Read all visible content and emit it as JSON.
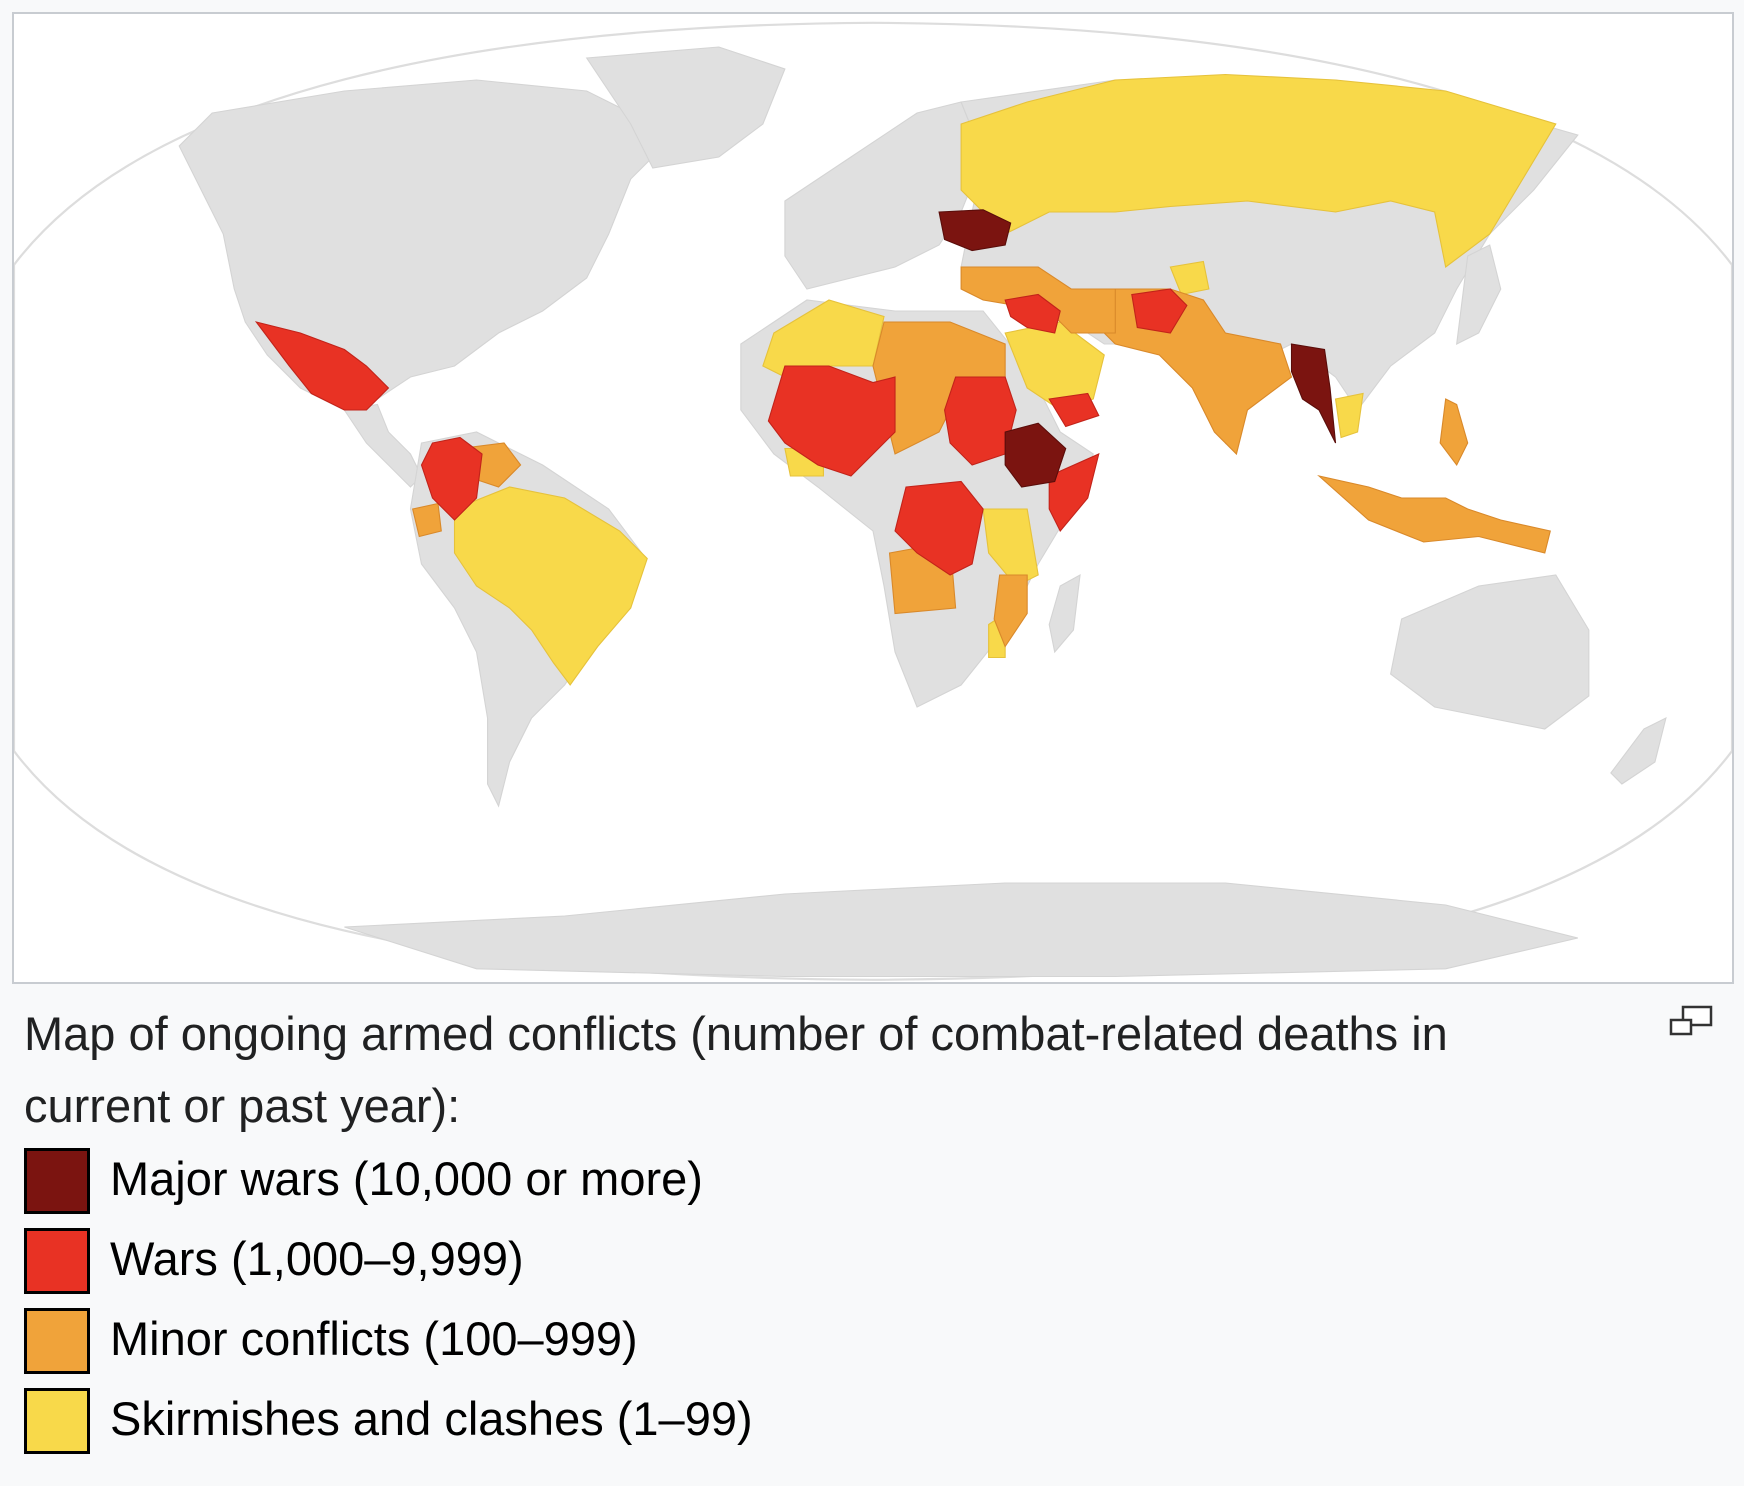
{
  "caption": {
    "text": "Map of ongoing armed conflicts (number of combat-related deaths in current or past year):"
  },
  "enlarge_icon": "enlarge-icon",
  "map": {
    "ocean_color": "#ffffff",
    "land_color": "#e0e0e0",
    "border_color": "#d4d4d4"
  },
  "legend": {
    "items": [
      {
        "label": "Major wars (10,000 or more)",
        "color": "#7b1410"
      },
      {
        "label": "Wars (1,000–9,999)",
        "color": "#e83224"
      },
      {
        "label": "Minor conflicts (100–999)",
        "color": "#f0a33a"
      },
      {
        "label": "Skirmishes and clashes (1–99)",
        "color": "#f8d94a"
      }
    ]
  }
}
